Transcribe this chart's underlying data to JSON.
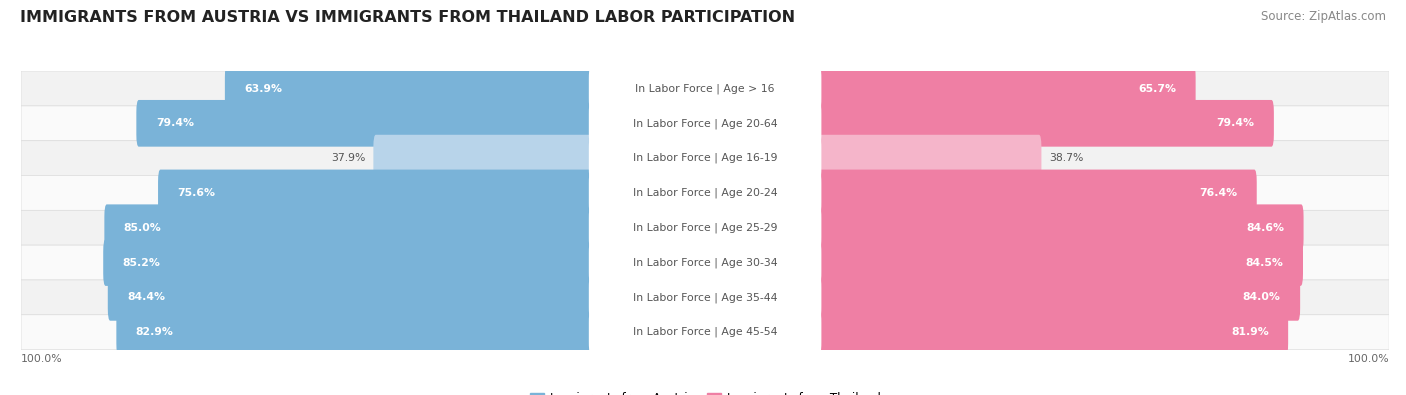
{
  "title": "IMMIGRANTS FROM AUSTRIA VS IMMIGRANTS FROM THAILAND LABOR PARTICIPATION",
  "source": "Source: ZipAtlas.com",
  "categories": [
    "In Labor Force | Age > 16",
    "In Labor Force | Age 20-64",
    "In Labor Force | Age 16-19",
    "In Labor Force | Age 20-24",
    "In Labor Force | Age 25-29",
    "In Labor Force | Age 30-34",
    "In Labor Force | Age 35-44",
    "In Labor Force | Age 45-54"
  ],
  "austria_values": [
    63.9,
    79.4,
    37.9,
    75.6,
    85.0,
    85.2,
    84.4,
    82.9
  ],
  "thailand_values": [
    65.7,
    79.4,
    38.7,
    76.4,
    84.6,
    84.5,
    84.0,
    81.9
  ],
  "austria_color": "#7ab3d8",
  "austria_color_light": "#b8d4ea",
  "thailand_color": "#ef7fa4",
  "thailand_color_light": "#f5b5ca",
  "row_bg_odd": "#f2f2f2",
  "row_bg_even": "#fafafa",
  "row_border_color": "#dddddd",
  "title_fontsize": 11.5,
  "label_fontsize": 7.8,
  "value_fontsize": 7.8,
  "legend_fontsize": 8.5,
  "source_fontsize": 8.5,
  "max_value": 100.0,
  "bottom_label": "100.0%"
}
